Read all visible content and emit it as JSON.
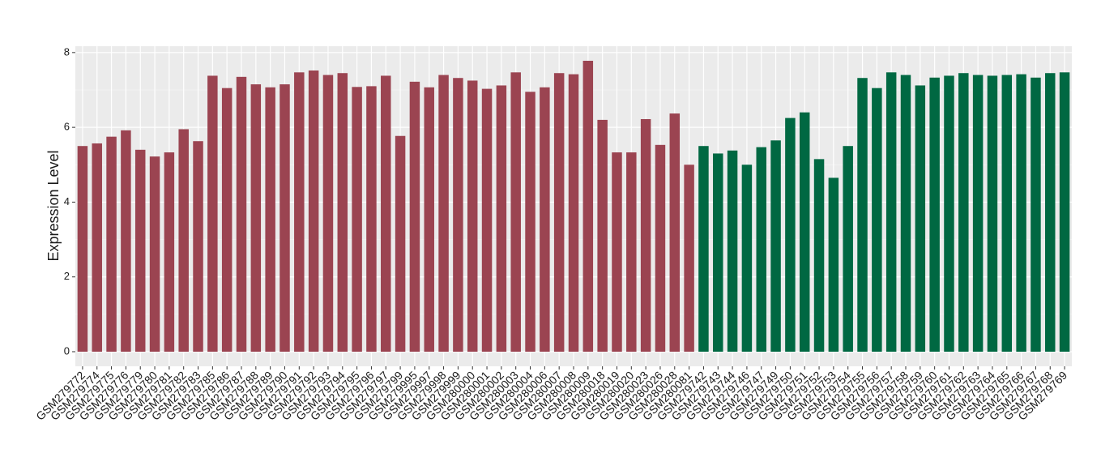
{
  "chart_data": {
    "type": "bar",
    "y_label": "Expression Level",
    "categories": [
      "GSM279772",
      "GSM279774",
      "GSM279775",
      "GSM279776",
      "GSM279779",
      "GSM279780",
      "GSM279781",
      "GSM279782",
      "GSM279783",
      "GSM279785",
      "GSM279786",
      "GSM279787",
      "GSM279788",
      "GSM279789",
      "GSM279790",
      "GSM279791",
      "GSM279792",
      "GSM279793",
      "GSM279794",
      "GSM279795",
      "GSM279796",
      "GSM279797",
      "GSM279799",
      "GSM279995",
      "GSM279997",
      "GSM279998",
      "GSM279999",
      "GSM280000",
      "GSM280001",
      "GSM280002",
      "GSM280003",
      "GSM280004",
      "GSM280006",
      "GSM280007",
      "GSM280008",
      "GSM280009",
      "GSM280018",
      "GSM280019",
      "GSM280020",
      "GSM280023",
      "GSM280026",
      "GSM280028",
      "GSM280081",
      "GSM279742",
      "GSM279743",
      "GSM279744",
      "GSM279746",
      "GSM279747",
      "GSM279749",
      "GSM279750",
      "GSM279751",
      "GSM279752",
      "GSM279753",
      "GSM279754",
      "GSM279755",
      "GSM279756",
      "GSM279757",
      "GSM279758",
      "GSM279759",
      "GSM279760",
      "GSM279761",
      "GSM279762",
      "GSM279763",
      "GSM279764",
      "GSM279765",
      "GSM279766",
      "GSM279767",
      "GSM279768",
      "GSM279769"
    ],
    "values": [
      5.5,
      5.57,
      5.75,
      5.92,
      5.4,
      5.22,
      5.33,
      5.95,
      5.63,
      7.38,
      7.05,
      7.35,
      7.15,
      7.07,
      7.15,
      7.47,
      7.52,
      7.4,
      7.45,
      7.08,
      7.1,
      7.38,
      5.77,
      7.22,
      7.07,
      7.4,
      7.32,
      7.25,
      7.03,
      7.12,
      7.47,
      6.95,
      7.07,
      7.45,
      7.42,
      7.78,
      6.2,
      5.33,
      5.33,
      6.22,
      5.53,
      6.37,
      5.0,
      5.5,
      5.3,
      5.38,
      5.0,
      5.47,
      5.65,
      6.25,
      6.4,
      5.15,
      4.65,
      5.5,
      7.32,
      7.05,
      7.47,
      7.4,
      7.12,
      7.33,
      7.38,
      7.45,
      7.4,
      7.38,
      7.4,
      7.42,
      7.33,
      7.45,
      7.47
    ],
    "colors": [
      "#9b4451",
      "#9b4451",
      "#9b4451",
      "#9b4451",
      "#9b4451",
      "#9b4451",
      "#9b4451",
      "#9b4451",
      "#9b4451",
      "#9b4451",
      "#9b4451",
      "#9b4451",
      "#9b4451",
      "#9b4451",
      "#9b4451",
      "#9b4451",
      "#9b4451",
      "#9b4451",
      "#9b4451",
      "#9b4451",
      "#9b4451",
      "#9b4451",
      "#9b4451",
      "#9b4451",
      "#9b4451",
      "#9b4451",
      "#9b4451",
      "#9b4451",
      "#9b4451",
      "#9b4451",
      "#9b4451",
      "#9b4451",
      "#9b4451",
      "#9b4451",
      "#9b4451",
      "#9b4451",
      "#9b4451",
      "#9b4451",
      "#9b4451",
      "#9b4451",
      "#9b4451",
      "#9b4451",
      "#9b4451",
      "#006842",
      "#006842",
      "#006842",
      "#006842",
      "#006842",
      "#006842",
      "#006842",
      "#006842",
      "#006842",
      "#006842",
      "#006842",
      "#006842",
      "#006842",
      "#006842",
      "#006842",
      "#006842",
      "#006842",
      "#006842",
      "#006842",
      "#006842",
      "#006842",
      "#006842",
      "#006842",
      "#006842",
      "#006842",
      "#006842"
    ],
    "ylim": [
      -0.39,
      8.17
    ],
    "yticks": [
      0,
      2,
      4,
      6,
      8
    ],
    "grid": true
  }
}
